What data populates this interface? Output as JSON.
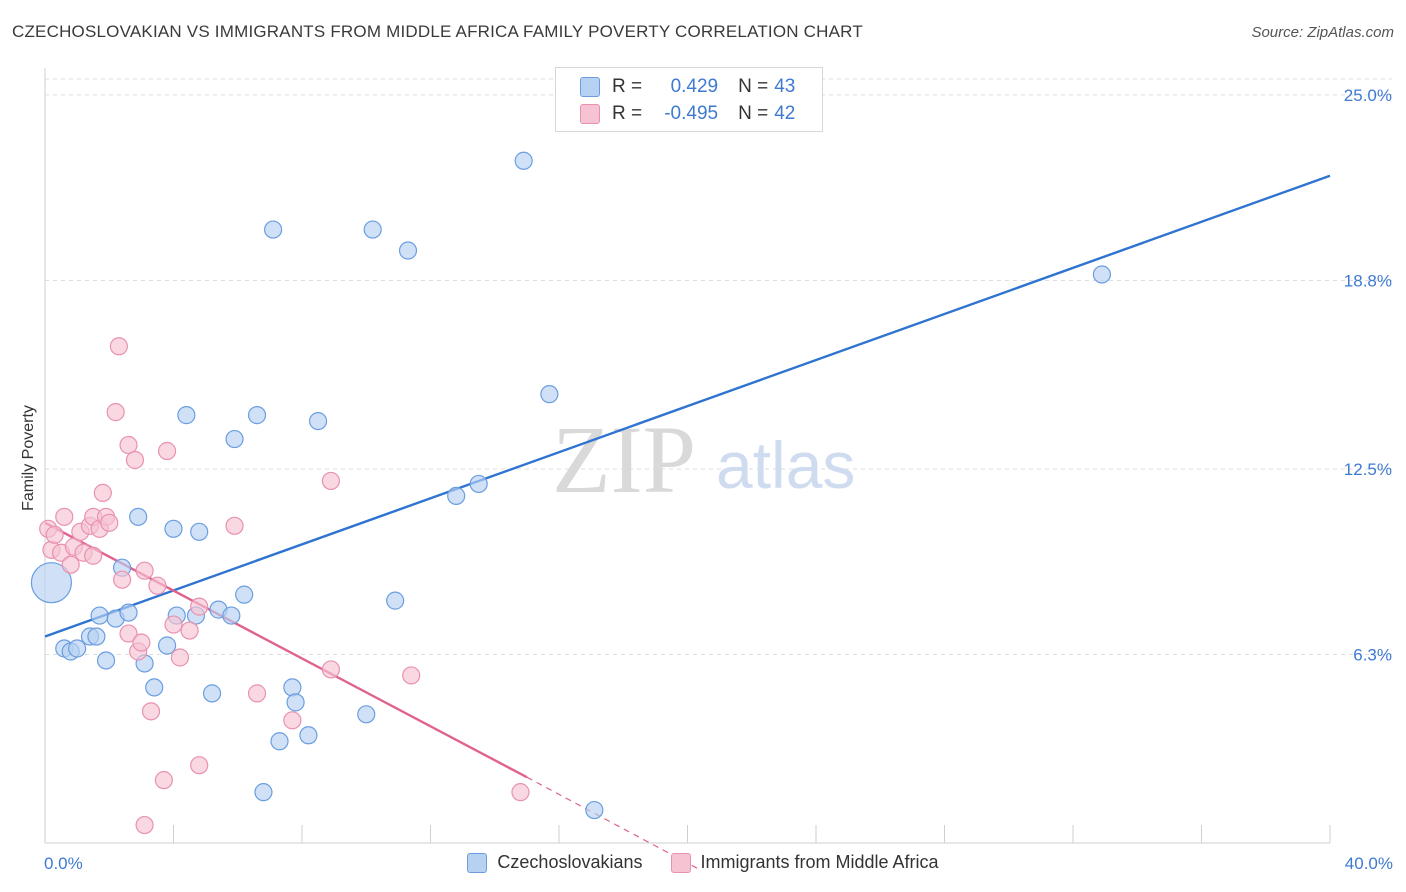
{
  "header": {
    "title": "CZECHOSLOVAKIAN VS IMMIGRANTS FROM MIDDLE AFRICA FAMILY POVERTY CORRELATION CHART",
    "source": "Source: ZipAtlas.com"
  },
  "watermark": {
    "zip": "ZIP",
    "atlas": "atlas"
  },
  "legend": {
    "rows": [
      {
        "r_label": "R =",
        "r_value": "0.429",
        "n_label": "N =",
        "n_value": "43"
      },
      {
        "r_label": "R =",
        "r_value": "-0.495",
        "n_label": "N =",
        "n_value": "42"
      }
    ]
  },
  "bottom_legend": {
    "series1": "Czechoslovakians",
    "series2": "Immigrants from Middle Africa"
  },
  "colors": {
    "blue_fill": "#b7d1f3",
    "blue_stroke": "#6a9ee0",
    "blue_line": "#2f74d0",
    "pink_fill": "#f6c3d3",
    "pink_stroke": "#e991b1",
    "pink_line": "#e0628f",
    "grid": "#dedede",
    "tick_text": "#3f7ad1"
  },
  "chart_data": {
    "type": "scatter",
    "title": "CZECHOSLOVAKIAN VS IMMIGRANTS FROM MIDDLE AFRICA FAMILY POVERTY CORRELATION CHART",
    "xlabel": "",
    "ylabel": "Family Poverty",
    "xlim": [
      0,
      40
    ],
    "ylim": [
      0,
      25.9
    ],
    "x_tick_labels": [
      "0.0%",
      "40.0%"
    ],
    "y_ticks": [
      6.3,
      12.5,
      18.8,
      25.0
    ],
    "y_tick_labels": [
      "6.3%",
      "12.5%",
      "18.8%",
      "25.0%"
    ],
    "series": [
      {
        "name": "Czechoslovakians",
        "R": 0.429,
        "N": 43,
        "trend": {
          "x0": 0,
          "y0": 6.9,
          "x1": 40,
          "y1": 22.3,
          "dashed_to": null
        },
        "points": [
          [
            0.2,
            8.7,
            "big"
          ],
          [
            0.6,
            6.5
          ],
          [
            0.8,
            6.4
          ],
          [
            1.0,
            6.5
          ],
          [
            1.4,
            6.9
          ],
          [
            1.7,
            7.6
          ],
          [
            1.6,
            6.9
          ],
          [
            1.9,
            6.1
          ],
          [
            2.2,
            7.5
          ],
          [
            2.4,
            9.2
          ],
          [
            2.6,
            7.7
          ],
          [
            2.9,
            10.9
          ],
          [
            3.1,
            6.0
          ],
          [
            3.4,
            5.2
          ],
          [
            3.8,
            6.6
          ],
          [
            4.0,
            10.5
          ],
          [
            4.1,
            7.6
          ],
          [
            4.4,
            14.3
          ],
          [
            4.7,
            7.6
          ],
          [
            4.8,
            10.4
          ],
          [
            5.2,
            5.0
          ],
          [
            5.4,
            7.8
          ],
          [
            5.8,
            7.6
          ],
          [
            5.9,
            13.5
          ],
          [
            6.2,
            8.3
          ],
          [
            6.6,
            14.3
          ],
          [
            6.8,
            1.7
          ],
          [
            7.1,
            20.5
          ],
          [
            7.3,
            3.4
          ],
          [
            7.7,
            5.2
          ],
          [
            7.8,
            4.7
          ],
          [
            8.2,
            3.6
          ],
          [
            8.5,
            14.1
          ],
          [
            10.0,
            4.3
          ],
          [
            10.2,
            20.5
          ],
          [
            10.9,
            8.1
          ],
          [
            11.3,
            19.8
          ],
          [
            12.8,
            11.6
          ],
          [
            13.5,
            12.0
          ],
          [
            14.9,
            22.8
          ],
          [
            15.7,
            15.0
          ],
          [
            17.1,
            1.1
          ],
          [
            32.9,
            19.0
          ]
        ]
      },
      {
        "name": "Immigrants from Middle Africa",
        "R": -0.495,
        "N": 42,
        "trend": {
          "x0": 0,
          "y0": 10.7,
          "x1": 15.0,
          "y1": 2.2,
          "dashed_to": [
            20.4,
            -0.9
          ]
        },
        "points": [
          [
            0.1,
            10.5
          ],
          [
            0.2,
            9.8
          ],
          [
            0.3,
            10.3
          ],
          [
            0.5,
            9.7
          ],
          [
            0.6,
            10.9
          ],
          [
            0.9,
            9.9
          ],
          [
            0.8,
            9.3
          ],
          [
            1.1,
            10.4
          ],
          [
            1.2,
            9.7
          ],
          [
            1.4,
            10.6
          ],
          [
            1.5,
            9.6
          ],
          [
            1.5,
            10.9
          ],
          [
            1.7,
            10.5
          ],
          [
            1.8,
            11.7
          ],
          [
            1.9,
            10.9
          ],
          [
            2.0,
            10.7
          ],
          [
            2.2,
            14.4
          ],
          [
            2.3,
            16.6
          ],
          [
            2.4,
            8.8
          ],
          [
            2.6,
            7.0
          ],
          [
            2.6,
            13.3
          ],
          [
            2.8,
            12.8
          ],
          [
            2.9,
            6.4
          ],
          [
            3.0,
            6.7
          ],
          [
            3.1,
            9.1
          ],
          [
            3.1,
            0.6
          ],
          [
            3.3,
            4.4
          ],
          [
            3.5,
            8.6
          ],
          [
            3.7,
            2.1
          ],
          [
            3.8,
            13.1
          ],
          [
            4.0,
            7.3
          ],
          [
            4.2,
            6.2
          ],
          [
            4.5,
            7.1
          ],
          [
            4.8,
            2.6
          ],
          [
            4.8,
            7.9
          ],
          [
            5.9,
            10.6
          ],
          [
            6.6,
            5.0
          ],
          [
            7.7,
            4.1
          ],
          [
            8.9,
            5.8
          ],
          [
            8.9,
            12.1
          ],
          [
            11.4,
            5.6
          ],
          [
            14.8,
            1.7
          ]
        ]
      }
    ]
  }
}
